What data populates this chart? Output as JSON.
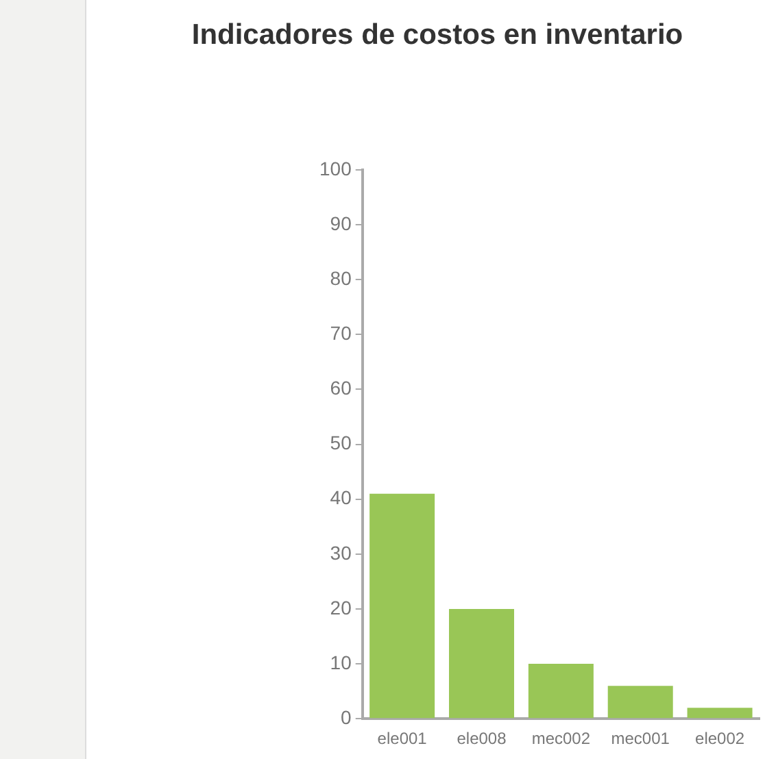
{
  "chart_data": {
    "type": "bar",
    "title": "Indicadores de costos en inventario",
    "categories": [
      "ele001",
      "ele008",
      "mec002",
      "mec001",
      "ele002"
    ],
    "values": [
      41,
      20,
      10,
      6,
      2
    ],
    "color": "#99c656",
    "ylim": [
      0,
      100
    ],
    "yticks": [
      0,
      10,
      20,
      30,
      40,
      50,
      60,
      70,
      80,
      90,
      100
    ],
    "grid": false,
    "legend": false
  }
}
